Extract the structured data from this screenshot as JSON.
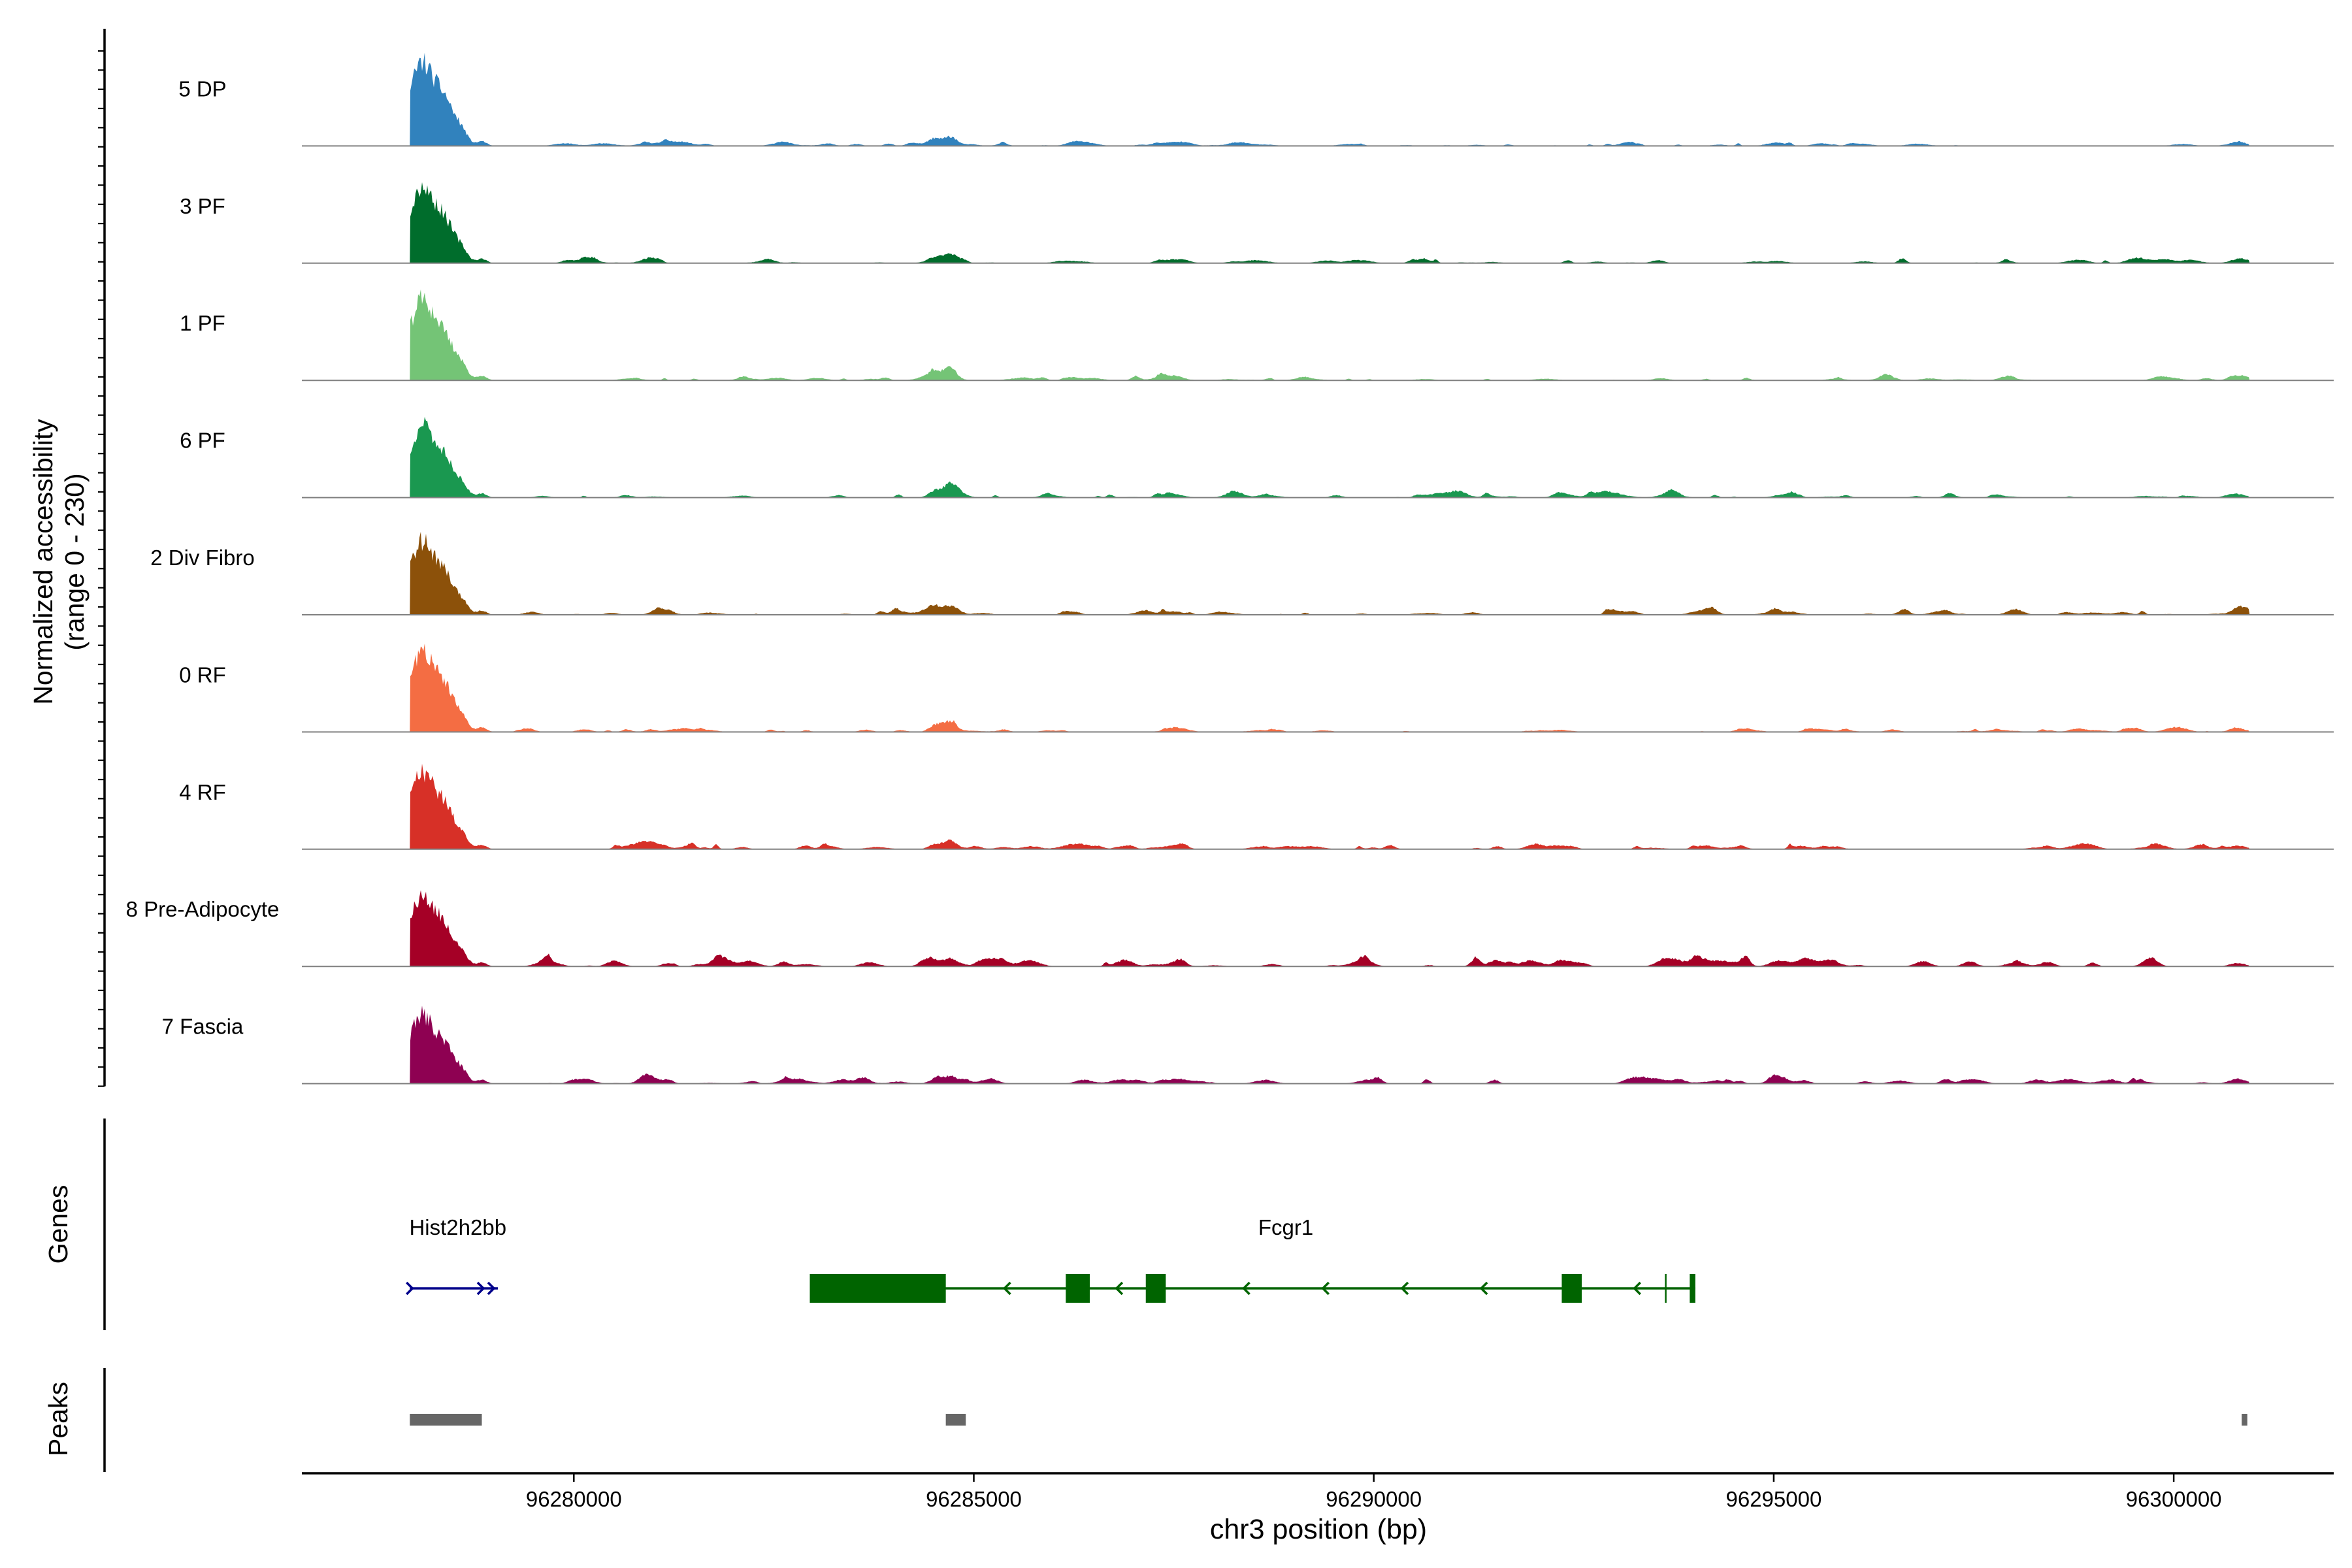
{
  "chart_data": {
    "type": "area",
    "title": "",
    "ylabel": "Normalized accessibility",
    "ylabel_range": "(range 0 - 230)",
    "xlabel": "chr3 position (bp)",
    "xlim": [
      96276600,
      96302000
    ],
    "ylim": [
      0,
      230
    ],
    "x_ticks": [
      96280000,
      96285000,
      96290000,
      96295000,
      96300000
    ],
    "x_tick_labels": [
      "96280000",
      "96285000",
      "96290000",
      "96295000",
      "96300000"
    ],
    "peaks_bp": [
      {
        "x": 96278100,
        "h": 0.88,
        "w": 160
      },
      {
        "x": 96278400,
        "h": 0.38,
        "w": 110
      },
      {
        "x": 96278600,
        "h": 0.14,
        "w": 80
      },
      {
        "x": 96278850,
        "h": 0.05,
        "w": 60
      },
      {
        "x": 96284700,
        "h": 0.1,
        "w": 90
      },
      {
        "x": 96284500,
        "h": 0.05,
        "w": 70
      },
      {
        "x": 96287500,
        "h": 0.04,
        "w": 120
      },
      {
        "x": 96300800,
        "h": 0.04,
        "w": 100
      }
    ],
    "series": [
      {
        "name": "5 DP",
        "color": "#3182bd",
        "scale": 0.93,
        "noise": 1.0,
        "seed": 11
      },
      {
        "name": "3 PF",
        "color": "#006d2c",
        "scale": 0.86,
        "noise": 1.2,
        "seed": 23
      },
      {
        "name": "1 PF",
        "color": "#74c476",
        "scale": 0.9,
        "noise": 1.0,
        "seed": 37
      },
      {
        "name": "6 PF",
        "color": "#1a9850",
        "scale": 0.8,
        "noise": 1.4,
        "seed": 41
      },
      {
        "name": "2 Div Fibro",
        "color": "#8c510a",
        "scale": 0.82,
        "noise": 1.5,
        "seed": 53
      },
      {
        "name": "0 RF",
        "color": "#f46d43",
        "scale": 0.9,
        "noise": 1.0,
        "seed": 67
      },
      {
        "name": "4 RF",
        "color": "#d73027",
        "scale": 0.87,
        "noise": 1.5,
        "seed": 71
      },
      {
        "name": "8 Pre-Adipocyte",
        "color": "#a50026",
        "scale": 0.8,
        "noise": 2.6,
        "seed": 83
      },
      {
        "name": "7 Fascia",
        "color": "#8e0152",
        "scale": 0.76,
        "noise": 2.0,
        "seed": 97
      }
    ],
    "genes_panel_label": "Genes",
    "genes": [
      {
        "name": "Hist2h2bb",
        "strand": "+",
        "color": "#00008b",
        "start": 96277950,
        "end": 96279050,
        "label_x": 96278550,
        "exons": []
      },
      {
        "name": "Fcgr1",
        "strand": "-",
        "color": "#006400",
        "start": 96282950,
        "end": 96294020,
        "label_x": 96288900,
        "exons": [
          [
            96282950,
            96284650
          ],
          [
            96286150,
            96286450
          ],
          [
            96287150,
            96287400
          ],
          [
            96292350,
            96292600
          ],
          [
            96293950,
            96294020
          ]
        ],
        "marks": [
          96293650
        ]
      }
    ],
    "peaks_panel_label": "Peaks",
    "peaks": [
      [
        96277950,
        96278850
      ],
      [
        96284650,
        96284900
      ],
      [
        96300850,
        96300920
      ]
    ]
  }
}
